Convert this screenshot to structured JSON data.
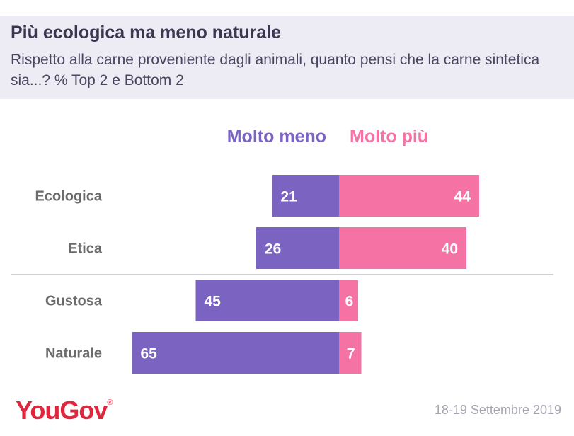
{
  "header": {
    "title": "Più ecologica ma meno naturale",
    "subtitle": "Rispetto alla carne proveniente dagli animali, quanto pensi che la carne sintetica sia...? % Top 2 e Bottom 2"
  },
  "chart_data": {
    "type": "bar",
    "orientation": "horizontal-diverging",
    "categories": [
      "Ecologica",
      "Etica",
      "Gustosa",
      "Naturale"
    ],
    "series": [
      {
        "name": "Molto meno",
        "values": [
          21,
          26,
          45,
          65
        ],
        "color": "#7b63c2"
      },
      {
        "name": "Molto più",
        "values": [
          44,
          40,
          6,
          7
        ],
        "color": "#f472a4"
      }
    ],
    "legend_position": "top"
  },
  "footer": {
    "logo": "YouGov",
    "logo_mark": "®",
    "date": "18-19 Settembre 2019"
  },
  "colors": {
    "header_bg": "#edebf4",
    "label_text": "#6b6b6b",
    "brand_red": "#e0263c"
  }
}
